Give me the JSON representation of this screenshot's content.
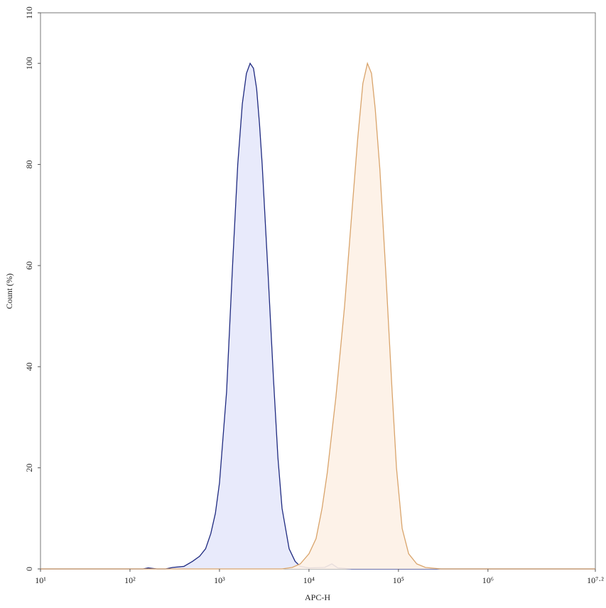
{
  "chart_data": {
    "type": "area",
    "x_label": "APC-H",
    "y_label": "Count (%)",
    "xscale": "log",
    "xlim": [
      10,
      15848931.92
    ],
    "ylim": [
      0,
      110
    ],
    "xticks": [
      {
        "value": 10,
        "label": "10¹"
      },
      {
        "value": 100,
        "label": "10²"
      },
      {
        "value": 1000,
        "label": "10³"
      },
      {
        "value": 10000,
        "label": "10⁴"
      },
      {
        "value": 100000,
        "label": "10⁵"
      },
      {
        "value": 1000000,
        "label": "10⁶"
      },
      {
        "value": 15848931.92,
        "label": "10⁷·²"
      }
    ],
    "yticks": [
      0,
      20,
      40,
      60,
      80,
      100,
      110
    ],
    "series": [
      {
        "color": "#1f2a80",
        "fill": "#e6e8fb",
        "x": [
          10,
          140,
          160,
          200,
          250,
          300,
          400,
          500,
          600,
          700,
          800,
          900,
          1000,
          1200,
          1400,
          1600,
          1800,
          2000,
          2200,
          2400,
          2600,
          2800,
          3000,
          3500,
          4000,
          4500,
          5000,
          6000,
          7000,
          8000,
          10000,
          15000,
          18000,
          21000,
          30000,
          15848931.92
        ],
        "values": [
          0,
          0,
          0.2,
          0,
          0,
          0.3,
          0.5,
          1.5,
          2.5,
          4,
          7,
          11,
          17,
          35,
          60,
          80,
          92,
          98,
          100,
          99,
          95,
          88,
          80,
          58,
          38,
          22,
          12,
          4,
          1.5,
          0.5,
          0.2,
          0.3,
          1,
          0.2,
          0,
          0
        ]
      },
      {
        "color": "#d9a46b",
        "fill": "#fdf1e6",
        "x": [
          10,
          5000,
          6500,
          8000,
          10000,
          12000,
          14000,
          16000,
          20000,
          25000,
          30000,
          35000,
          40000,
          45000,
          50000,
          55000,
          62000,
          72000,
          85000,
          95000,
          110000,
          130000,
          160000,
          200000,
          300000,
          15848931.92
        ],
        "values": [
          0,
          0,
          0.3,
          1,
          3,
          6,
          12,
          19,
          34,
          52,
          70,
          85,
          96,
          100,
          98,
          91,
          79,
          59,
          35,
          20,
          8,
          3,
          1,
          0.3,
          0,
          0
        ]
      }
    ]
  }
}
